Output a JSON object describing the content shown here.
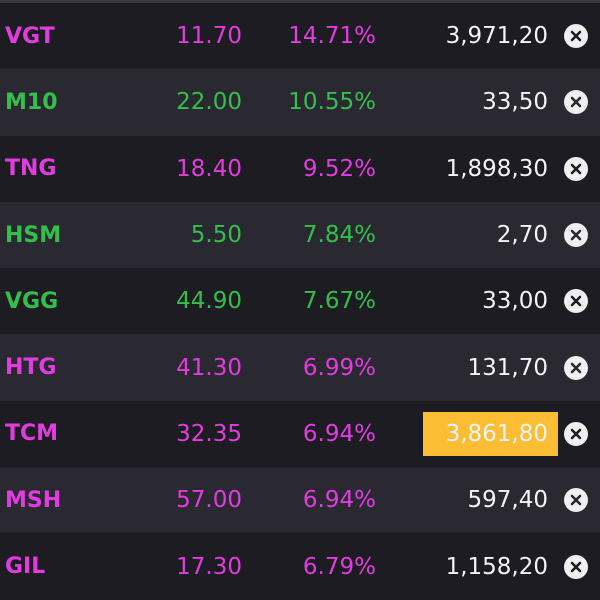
{
  "colors": {
    "magenta": "#e23ce0",
    "green": "#33c04a",
    "highlight": "#fbbd34",
    "row_dark": "#1c1c22",
    "row_light": "#2a2932",
    "text_white": "#f4f4f4"
  },
  "rows": [
    {
      "symbol": "VGT",
      "price": "11.70",
      "change": "14.71%",
      "volume": "3,971,20",
      "color": "magenta",
      "highlight": false,
      "icon": "close-circle-icon"
    },
    {
      "symbol": "M10",
      "price": "22.00",
      "change": "10.55%",
      "volume": "33,50",
      "color": "green",
      "highlight": false,
      "icon": "close-circle-icon"
    },
    {
      "symbol": "TNG",
      "price": "18.40",
      "change": "9.52%",
      "volume": "1,898,30",
      "color": "magenta",
      "highlight": false,
      "icon": "close-circle-icon"
    },
    {
      "symbol": "HSM",
      "price": "5.50",
      "change": "7.84%",
      "volume": "2,70",
      "color": "green",
      "highlight": false,
      "icon": "close-circle-icon"
    },
    {
      "symbol": "VGG",
      "price": "44.90",
      "change": "7.67%",
      "volume": "33,00",
      "color": "green",
      "highlight": false,
      "icon": "close-circle-icon"
    },
    {
      "symbol": "HTG",
      "price": "41.30",
      "change": "6.99%",
      "volume": "131,70",
      "color": "magenta",
      "highlight": false,
      "icon": "close-circle-icon"
    },
    {
      "symbol": "TCM",
      "price": "32.35",
      "change": "6.94%",
      "volume": "3,861,80",
      "color": "magenta",
      "highlight": true,
      "icon": "close-circle-icon"
    },
    {
      "symbol": "MSH",
      "price": "57.00",
      "change": "6.94%",
      "volume": "597,40",
      "color": "magenta",
      "highlight": false,
      "icon": "close-circle-icon"
    },
    {
      "symbol": "GIL",
      "price": "17.30",
      "change": "6.79%",
      "volume": "1,158,20",
      "color": "magenta",
      "highlight": false,
      "icon": "close-circle-icon"
    }
  ]
}
